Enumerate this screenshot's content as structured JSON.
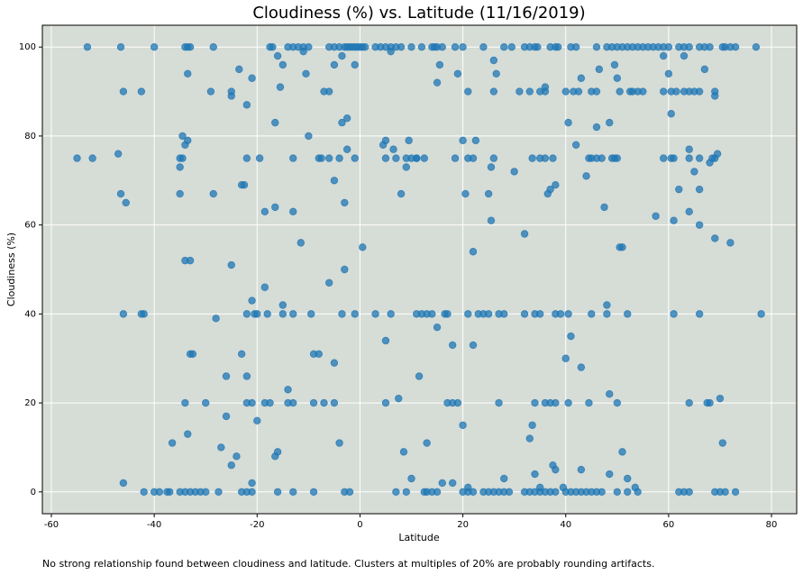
{
  "chart_data": {
    "type": "scatter",
    "title": "Cloudiness (%) vs. Latitude (11/16/2019)",
    "x_label": "Latitude",
    "y_label": "Cloudiness (%)",
    "caption": "No strong relationship found between cloudiness and latitude. Clusters at multiples of 20% are probably rounding artifacts.",
    "color": "#1f77b4",
    "background": "#d6dcd6",
    "grid": true,
    "xlim": [
      -61.75,
      84.9
    ],
    "ylim": [
      -4.9,
      104.9
    ],
    "xticks": [
      -60,
      -40,
      -20,
      0,
      20,
      40,
      60,
      80
    ],
    "yticks": [
      0,
      20,
      40,
      60,
      80,
      100
    ],
    "series": [
      {
        "x": [
          -53,
          -46.5,
          -40,
          -34,
          -33.5,
          -33,
          -28.5,
          -17.5,
          -17,
          -12,
          -11,
          -10,
          -14,
          -13,
          -5,
          -6,
          -4,
          -3,
          -2.5,
          -2,
          -1.5,
          -1,
          -0.5,
          0,
          0.5,
          1,
          3,
          4,
          5,
          6,
          7,
          8,
          10,
          12,
          14,
          14.5,
          15,
          16,
          18.5,
          20,
          24,
          28,
          29.5,
          32,
          33,
          34,
          34.5,
          37,
          38,
          38.5,
          42,
          41,
          46,
          48,
          49,
          50,
          51,
          52,
          53,
          54,
          55,
          56,
          57,
          58,
          59,
          60,
          62,
          63,
          64,
          66,
          67,
          68,
          70.5,
          71,
          72,
          73,
          77
        ],
        "values": [
          100,
          100,
          100,
          100,
          100,
          100,
          100,
          100,
          100,
          100,
          100,
          100,
          100,
          100,
          100,
          100,
          100,
          100,
          100,
          100,
          100,
          100,
          100,
          100,
          100,
          100,
          100,
          100,
          100,
          100,
          100,
          100,
          100,
          100,
          100,
          100,
          100,
          100,
          100,
          100,
          100,
          100,
          100,
          100,
          100,
          100,
          100,
          100,
          100,
          100,
          100,
          100,
          100,
          100,
          100,
          100,
          100,
          100,
          100,
          100,
          100,
          100,
          100,
          100,
          100,
          100,
          100,
          100,
          100,
          100,
          100,
          100,
          100,
          100,
          100,
          100,
          100
        ]
      },
      {
        "x": [
          -42,
          -40,
          -39,
          -37.5,
          -37,
          -35,
          -34,
          -33,
          -32,
          -31,
          -30,
          -27.5,
          -23,
          -22,
          -21,
          -16,
          -13,
          -9,
          -3,
          -2,
          7,
          9,
          12.5,
          13,
          14,
          15,
          20,
          21,
          22,
          24,
          25,
          26,
          27,
          28,
          29,
          32,
          33,
          34,
          35,
          36,
          37,
          38,
          40,
          41,
          42,
          43,
          44,
          45,
          46,
          47,
          50,
          52,
          54,
          62,
          63,
          64,
          69,
          70,
          71,
          73
        ],
        "values": [
          0,
          0,
          0,
          0,
          0,
          0,
          0,
          0,
          0,
          0,
          0,
          0,
          0,
          0,
          0,
          0,
          0,
          0,
          0,
          0,
          0,
          0,
          0,
          0,
          0,
          0,
          0,
          0,
          0,
          0,
          0,
          0,
          0,
          0,
          0,
          0,
          0,
          0,
          0,
          0,
          0,
          0,
          0,
          0,
          0,
          0,
          0,
          0,
          0,
          0,
          0,
          0,
          0,
          0,
          0,
          0,
          0,
          0,
          0,
          0
        ]
      },
      {
        "x": [
          -46,
          -42.5,
          -42,
          -22,
          -20.5,
          -20,
          -18,
          -15,
          -13,
          -9.5,
          -3.5,
          -1,
          3,
          6,
          11,
          12,
          13,
          14,
          16.5,
          17,
          21,
          23,
          24,
          25,
          27,
          28,
          32,
          34,
          35,
          38,
          39,
          40.5,
          45,
          48,
          52,
          61,
          66,
          78
        ],
        "values": [
          40,
          40,
          40,
          40,
          40,
          40,
          40,
          40,
          40,
          40,
          40,
          40,
          40,
          40,
          40,
          40,
          40,
          40,
          40,
          40,
          40,
          40,
          40,
          40,
          40,
          40,
          40,
          40,
          40,
          40,
          40,
          40,
          40,
          40,
          40,
          40,
          40,
          40
        ]
      },
      {
        "x": [
          -46,
          -42.5,
          -29,
          -25,
          -6,
          21,
          26,
          31,
          33,
          35,
          36,
          40,
          41.5,
          42.5,
          45,
          46,
          50.5,
          52.5,
          53,
          54,
          55,
          59,
          60.5,
          61.5,
          63,
          64,
          65,
          66,
          69
        ],
        "values": [
          90,
          90,
          90,
          90,
          90,
          90,
          90,
          90,
          90,
          90,
          90,
          90,
          90,
          90,
          90,
          90,
          90,
          90,
          90,
          90,
          90,
          90,
          90,
          90,
          90,
          90,
          90,
          90,
          90
        ]
      },
      {
        "x": [
          -55,
          -52,
          -35,
          -34.5,
          -22,
          -19.5,
          -13,
          -8,
          -7.5,
          -6,
          -4,
          -1,
          5,
          7,
          9,
          10,
          11,
          12.5,
          18.5,
          21,
          22,
          26,
          33.5,
          35,
          36,
          37.5,
          44.5,
          45,
          46,
          47,
          49,
          49.5,
          50,
          59,
          60.5,
          61,
          64,
          66,
          69
        ],
        "values": [
          75,
          75,
          75,
          75,
          75,
          75,
          75,
          75,
          75,
          75,
          75,
          75,
          75,
          75,
          75,
          75,
          75,
          75,
          75,
          75,
          75,
          75,
          75,
          75,
          75,
          75,
          75,
          75,
          75,
          75,
          75,
          75,
          75,
          75,
          75,
          75,
          75,
          75,
          75
        ]
      },
      {
        "x": [
          -34,
          -30,
          -22,
          -21,
          -18.5,
          -17.5,
          -14,
          -13,
          -9,
          -7,
          -5,
          5,
          17,
          18,
          19,
          27,
          34,
          36,
          37,
          38,
          40.5,
          44.5,
          50,
          64,
          67.5,
          68
        ],
        "values": [
          20,
          20,
          20,
          20,
          20,
          20,
          20,
          20,
          20,
          20,
          20,
          20,
          20,
          20,
          20,
          20,
          20,
          20,
          20,
          20,
          20,
          20,
          20,
          20,
          20,
          20
        ]
      },
      {
        "x": [
          -47,
          -46.5,
          -45.5,
          -46,
          -35,
          -35,
          -34.5,
          -34,
          -33.5,
          -34,
          -33,
          -33.5,
          -33,
          -32.5,
          -33.5,
          -36.5,
          -28.5,
          -28,
          -27,
          -26,
          -26,
          -25,
          -24,
          -25,
          -25,
          -23.5,
          -23,
          -22.5,
          -22,
          -23,
          -22,
          -21,
          -21,
          -21,
          -20,
          -18.5,
          -18.5,
          -16.5,
          -16.5,
          -16.5,
          -16,
          -16,
          -15.5,
          -15,
          -15,
          -14,
          -13,
          -11.5,
          -11,
          -10.5,
          -10,
          -9,
          -8,
          -7,
          -6,
          -5,
          -5,
          -5,
          -4,
          -3.5,
          -3.5,
          -3,
          -3,
          -2.5,
          -2.5,
          -1,
          0.5,
          4.5,
          5,
          5,
          6,
          6.5,
          7.5,
          8,
          8.5,
          9,
          9.5,
          10,
          11,
          11.5,
          13,
          15,
          15,
          15.5,
          16,
          18,
          18,
          19,
          20,
          20,
          20.5,
          21,
          22,
          22,
          22.5,
          25,
          25.5,
          25.5,
          26,
          26.5,
          28,
          30,
          32,
          33,
          33.5,
          34,
          35,
          36,
          36.5,
          37,
          37.5,
          38,
          38,
          39.5,
          40,
          40.5,
          41,
          42,
          43,
          43,
          43,
          44,
          46,
          46.5,
          47.5,
          48,
          48.5,
          48.5,
          48.5,
          49.5,
          50,
          50.5,
          51,
          51,
          52,
          53.5,
          57.5,
          59,
          60,
          60.5,
          61,
          62,
          63,
          64,
          64,
          65,
          66,
          66,
          67,
          68,
          68.5,
          69,
          69,
          69.5,
          70,
          70.5,
          72
        ],
        "values": [
          76,
          67,
          65,
          2,
          73,
          67,
          80,
          78,
          79,
          52,
          52,
          94,
          31,
          31,
          13,
          11,
          67,
          39,
          10,
          17,
          26,
          6,
          8,
          51,
          89,
          95,
          69,
          69,
          87,
          31,
          26,
          43,
          93,
          2,
          16,
          63,
          46,
          64,
          83,
          8,
          9,
          98,
          91,
          96,
          42,
          23,
          63,
          56,
          99,
          94,
          80,
          31,
          31,
          90,
          47,
          70,
          29,
          96,
          11,
          98,
          83,
          65,
          50,
          84,
          77,
          96,
          55,
          78,
          79,
          34,
          99,
          77,
          21,
          67,
          9,
          73,
          79,
          3,
          75,
          26,
          11,
          92,
          37,
          96,
          2,
          33,
          2,
          94,
          79,
          15,
          67,
          1,
          33,
          54,
          79,
          67,
          61,
          73,
          97,
          94,
          3,
          72,
          58,
          12,
          15,
          4,
          1,
          91,
          67,
          68,
          6,
          69,
          5,
          1,
          30,
          83,
          35,
          78,
          28,
          5,
          93,
          71,
          82,
          95,
          64,
          42,
          83,
          22,
          4,
          96,
          93,
          55,
          55,
          9,
          3,
          1,
          62,
          98,
          94,
          85,
          61,
          68,
          98,
          77,
          63,
          72,
          68,
          60,
          95,
          74,
          75,
          57,
          89,
          76,
          21,
          11,
          56
        ]
      }
    ]
  }
}
